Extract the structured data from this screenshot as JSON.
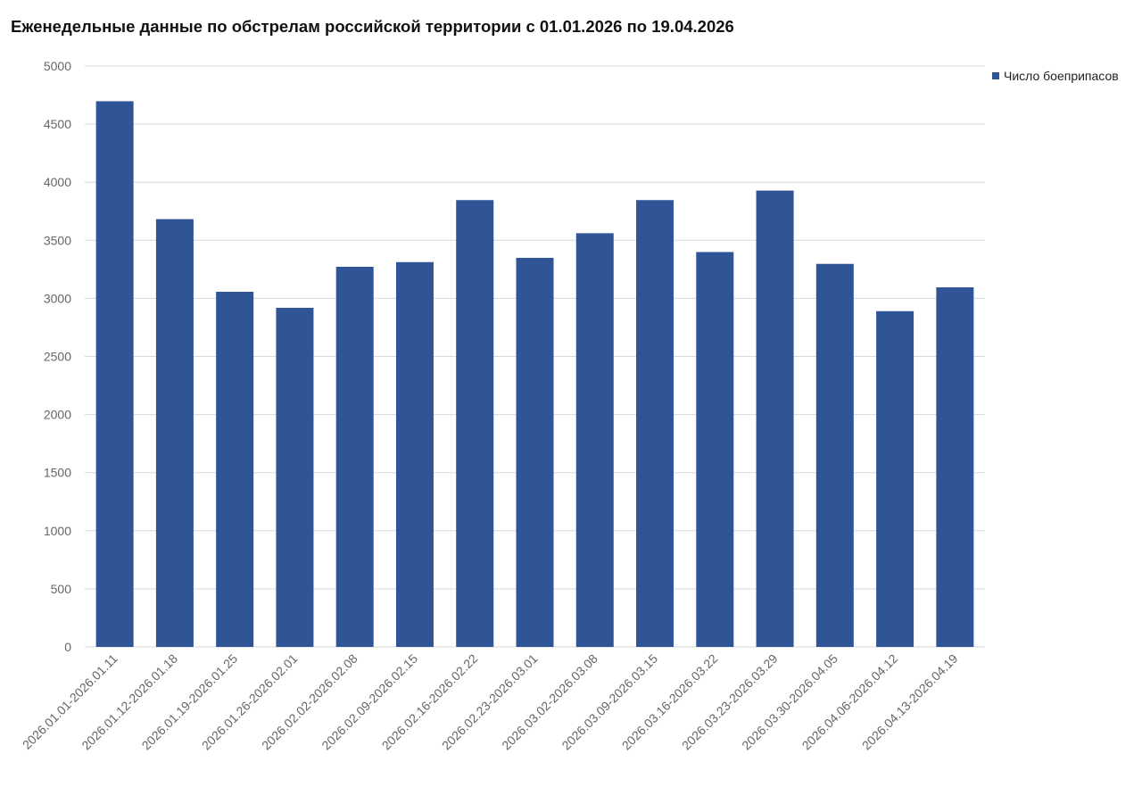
{
  "chart_data": {
    "type": "bar",
    "title": "Еженедельные данные по обстрелам российской территории с 01.01.2026 по 19.04.2026",
    "xlabel": "",
    "ylabel": "",
    "ylim": [
      0,
      5000
    ],
    "yticks": [
      0,
      500,
      1000,
      1500,
      2000,
      2500,
      3000,
      3500,
      4000,
      4500,
      5000
    ],
    "grid": true,
    "legend_position": "right",
    "categories": [
      "2026.01.01-2026.01.11",
      "2026.01.12-2026.01.18",
      "2026.01.19-2026.01.25",
      "2026.01.26-2026.02.01",
      "2026.02.02-2026.02.08",
      "2026.02.09-2026.02.15",
      "2026.02.16-2026.02.22",
      "2026.02.23-2026.03.01",
      "2026.03.02-2026.03.08",
      "2026.03.09-2026.03.15",
      "2026.03.16-2026.03.22",
      "2026.03.23-2026.03.29",
      "2026.03.30-2026.04.05",
      "2026.04.06-2026.04.12",
      "2026.04.13-2026.04.19"
    ],
    "series": [
      {
        "name": "Число боеприпасов",
        "color": "#2f5597",
        "values": [
          4697,
          3682,
          3057,
          2919,
          3272,
          3312,
          3846,
          3349,
          3561,
          3846,
          3399,
          3928,
          3297,
          2890,
          3095
        ]
      }
    ]
  }
}
